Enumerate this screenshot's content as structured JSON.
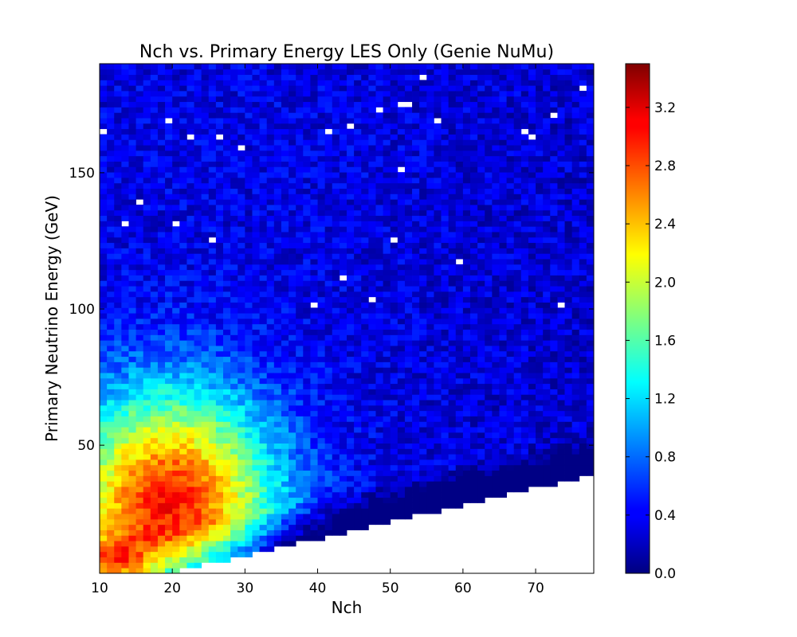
{
  "chart_data": {
    "type": "heatmap",
    "title": "Nch vs. Primary Energy LES Only (Genie NuMu)",
    "xlabel": "Nch",
    "ylabel": "Primary Neutrino Energy (GeV)",
    "xlim": [
      10,
      78
    ],
    "ylim": [
      3,
      190
    ],
    "xticks": [
      10,
      20,
      30,
      40,
      50,
      60,
      70
    ],
    "yticks": [
      50,
      100,
      150
    ],
    "colormap": "jet",
    "colorbar": {
      "range": [
        0.0,
        3.5
      ],
      "ticks": [
        0.0,
        0.4,
        0.8,
        1.2,
        1.6,
        2.0,
        2.4,
        2.8,
        3.2
      ]
    },
    "bins": {
      "nx": 68,
      "ny": 94
    },
    "description_of_values": "log10 event counts per bin",
    "features": {
      "peak": {
        "nch": 13,
        "energy_gev": 8,
        "value": 3.5
      },
      "lower_edge_cutoff": "energy roughly above 0.6*(Nch-10)"
    }
  }
}
